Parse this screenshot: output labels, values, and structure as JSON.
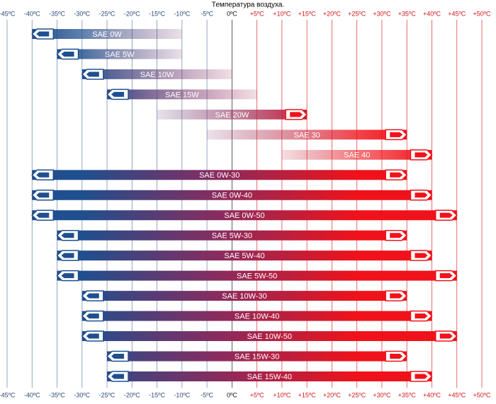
{
  "chart_data": {
    "type": "range-bar",
    "title": "Температура воздуха.",
    "xlim": [
      -45,
      50
    ],
    "xticks": [
      {
        "value": -45,
        "label": "-45ºC"
      },
      {
        "value": -40,
        "label": "-40ºC"
      },
      {
        "value": -35,
        "label": "-35ºC"
      },
      {
        "value": -30,
        "label": "-30ºC"
      },
      {
        "value": -25,
        "label": "-25ºC"
      },
      {
        "value": -20,
        "label": "-20ºC"
      },
      {
        "value": -15,
        "label": "-15ºC"
      },
      {
        "value": -10,
        "label": "-10ºC"
      },
      {
        "value": -5,
        "label": "-5ºC"
      },
      {
        "value": 0,
        "label": "0ºC"
      },
      {
        "value": 5,
        "label": "+5ºC"
      },
      {
        "value": 10,
        "label": "+10ºC"
      },
      {
        "value": 15,
        "label": "+15ºC"
      },
      {
        "value": 20,
        "label": "+20ºC"
      },
      {
        "value": 25,
        "label": "+25ºC"
      },
      {
        "value": 30,
        "label": "+30ºC"
      },
      {
        "value": 35,
        "label": "+35ºC"
      },
      {
        "value": 40,
        "label": "+40ºC"
      },
      {
        "value": 45,
        "label": "+45ºC"
      },
      {
        "value": 50,
        "label": "+50ºC"
      }
    ],
    "grid": true,
    "cold_color": "#1f4f8e",
    "hot_color": "#f0121a",
    "series": [
      {
        "name": "SAE 0W",
        "values": [
          -40,
          -10
        ],
        "arrows": [
          "left"
        ]
      },
      {
        "name": "SAE 5W",
        "values": [
          -35,
          -10
        ],
        "arrows": [
          "left"
        ]
      },
      {
        "name": "SAE 10W",
        "values": [
          -30,
          0
        ],
        "arrows": [
          "left"
        ]
      },
      {
        "name": "SAE 15W",
        "values": [
          -25,
          5
        ],
        "arrows": [
          "left"
        ]
      },
      {
        "name": "SAE 20W",
        "values": [
          -15,
          15
        ],
        "arrows": [
          "right"
        ]
      },
      {
        "name": "SAE 30",
        "values": [
          -5,
          35
        ],
        "arrows": [
          "right"
        ]
      },
      {
        "name": "SAE 40",
        "values": [
          10,
          40
        ],
        "arrows": [
          "right"
        ]
      },
      {
        "name": "SAE 0W-30",
        "values": [
          -40,
          35
        ],
        "arrows": [
          "left",
          "right"
        ]
      },
      {
        "name": "SAE 0W-40",
        "values": [
          -40,
          40
        ],
        "arrows": [
          "left",
          "right"
        ]
      },
      {
        "name": "SAE 0W-50",
        "values": [
          -40,
          45
        ],
        "arrows": [
          "left",
          "right"
        ]
      },
      {
        "name": "SAE 5W-30",
        "values": [
          -35,
          35
        ],
        "arrows": [
          "left",
          "right"
        ]
      },
      {
        "name": "SAE 5W-40",
        "values": [
          -35,
          40
        ],
        "arrows": [
          "left",
          "right"
        ]
      },
      {
        "name": "SAE 5W-50",
        "values": [
          -35,
          45
        ],
        "arrows": [
          "left",
          "right"
        ]
      },
      {
        "name": "SAE 10W-30",
        "values": [
          -30,
          35
        ],
        "arrows": [
          "left",
          "right"
        ]
      },
      {
        "name": "SAE 10W-40",
        "values": [
          -30,
          40
        ],
        "arrows": [
          "left",
          "right"
        ]
      },
      {
        "name": "SAE 10W-50",
        "values": [
          -30,
          45
        ],
        "arrows": [
          "left",
          "right"
        ]
      },
      {
        "name": "SAE 15W-30",
        "values": [
          -25,
          35
        ],
        "arrows": [
          "left",
          "right"
        ]
      },
      {
        "name": "SAE 15W-40",
        "values": [
          -25,
          40
        ],
        "arrows": [
          "left",
          "right"
        ]
      }
    ]
  }
}
